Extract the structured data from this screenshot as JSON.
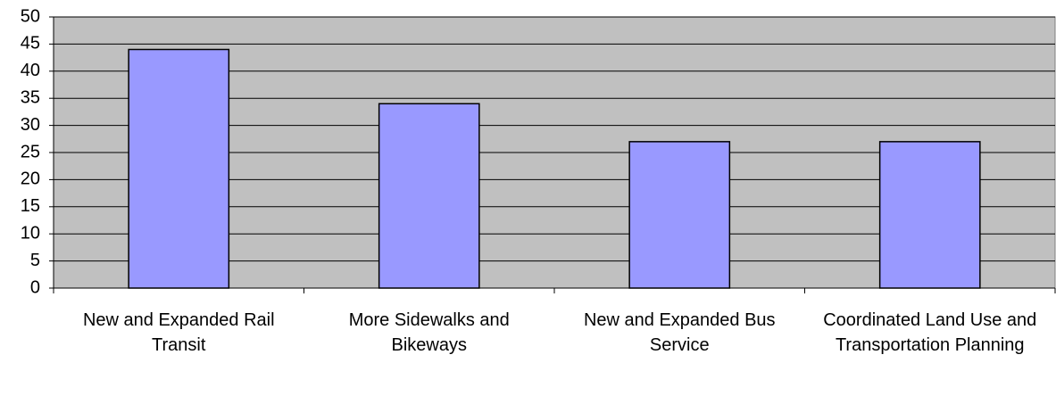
{
  "chart_data": {
    "type": "bar",
    "categories": [
      "New and Expanded Rail Transit",
      "More Sidewalks and Bikeways",
      "New and Expanded Bus Service",
      "Coordinated Land Use and Transportation Planning"
    ],
    "values": [
      44,
      34,
      27,
      27
    ],
    "color": "#9999ff",
    "plot_background": "#c0c0c0",
    "ylim": [
      0,
      50
    ],
    "yticks": [
      0,
      5,
      10,
      15,
      20,
      25,
      30,
      35,
      40,
      45,
      50
    ],
    "grid": true
  }
}
